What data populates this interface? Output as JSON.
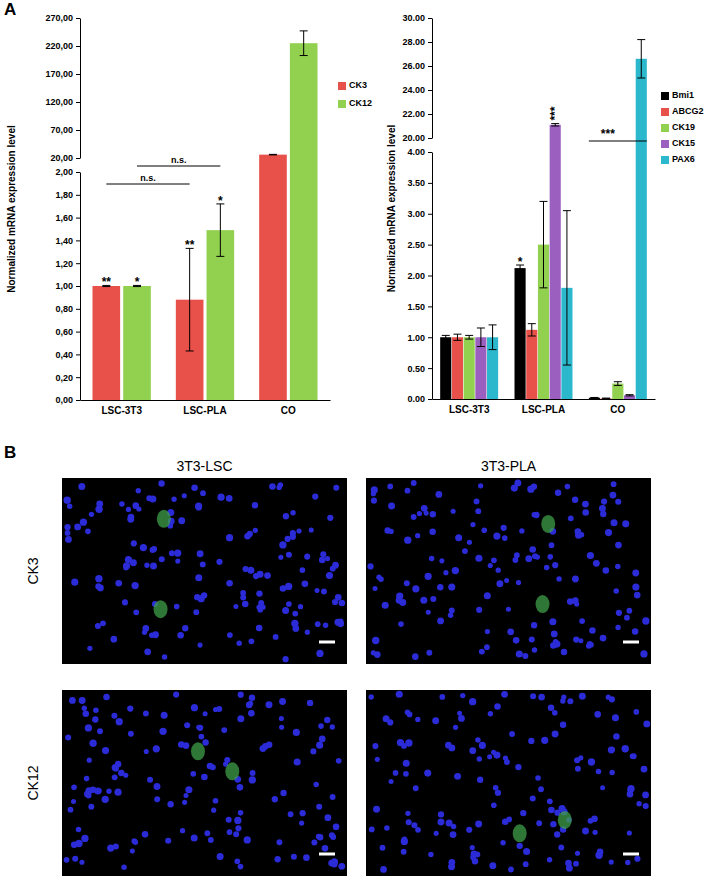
{
  "chart_data": [
    {
      "type": "bar",
      "y_label": "Normalized mRNA expression level",
      "categories": [
        "LSC-3T3",
        "LSC-PLA",
        "CO"
      ],
      "series": [
        {
          "name": "CK3",
          "color": "#e8504a",
          "values": [
            1.0,
            0.88,
            26
          ],
          "errors": [
            0.005,
            0.45,
            0.5
          ]
        },
        {
          "name": "CK12",
          "color": "#92d050",
          "values": [
            1.0,
            1.49,
            225
          ],
          "errors": [
            0.005,
            0.23,
            22
          ]
        }
      ],
      "ylim": [
        0,
        270
      ],
      "ybreak": [
        2,
        20
      ],
      "yticks": [
        {
          "value": 0,
          "label": "0,00"
        },
        {
          "value": 0.2,
          "label": "0,20"
        },
        {
          "value": 0.4,
          "label": "0,40"
        },
        {
          "value": 0.6,
          "label": "0,60"
        },
        {
          "value": 0.8,
          "label": "0,80"
        },
        {
          "value": 1,
          "label": "1,00"
        },
        {
          "value": 1.2,
          "label": "1,20"
        },
        {
          "value": 1.4,
          "label": "1,40"
        },
        {
          "value": 1.6,
          "label": "1,60"
        },
        {
          "value": 1.8,
          "label": "1,80"
        },
        {
          "value": 2,
          "label": "2,00"
        },
        {
          "value": 20,
          "label": "20,00"
        },
        {
          "value": 70,
          "label": "70,00"
        },
        {
          "value": 120,
          "label": "120,00"
        },
        {
          "value": 170,
          "label": "170,00"
        },
        {
          "value": 220,
          "label": "220,00"
        },
        {
          "value": 270,
          "label": "270,00"
        }
      ],
      "legend": "right",
      "annotations": [
        {
          "text": "**",
          "series": "CK3",
          "category": "LSC-3T3"
        },
        {
          "text": "*",
          "series": "CK12",
          "category": "LSC-3T3"
        },
        {
          "text": "**",
          "series": "CK3",
          "category": "LSC-PLA"
        },
        {
          "text": "*",
          "series": "CK12",
          "category": "LSC-PLA"
        },
        {
          "text": "n.s.",
          "series": "CK3",
          "from": "LSC-3T3",
          "to": "LSC-PLA"
        },
        {
          "text": "n.s.",
          "series": "CK12",
          "from": "LSC-3T3",
          "to": "LSC-PLA"
        }
      ]
    },
    {
      "type": "bar",
      "y_label": "Normalized mRNA expression level",
      "categories": [
        "LSC-3T3",
        "LSC-PLA",
        "CO"
      ],
      "series": [
        {
          "name": "Bmi1",
          "color": "#000000",
          "values": [
            1.0,
            2.12,
            0.02
          ],
          "errors": [
            0.03,
            0.05,
            0.005
          ]
        },
        {
          "name": "ABCG2",
          "color": "#e8504a",
          "values": [
            1.0,
            1.12,
            0.01
          ],
          "errors": [
            0.05,
            0.1,
            0.005
          ]
        },
        {
          "name": "CK19",
          "color": "#92d050",
          "values": [
            1.0,
            2.5,
            0.25
          ],
          "errors": [
            0.03,
            0.7,
            0.03
          ]
        },
        {
          "name": "CK15",
          "color": "#9b5fc0",
          "values": [
            1.0,
            21.1,
            0.06
          ],
          "errors": [
            0.15,
            0.1,
            0.01
          ]
        },
        {
          "name": "PAX6",
          "color": "#2cb8cc",
          "values": [
            1.0,
            1.8,
            26.6
          ],
          "errors": [
            0.2,
            1.25,
            1.6
          ]
        }
      ],
      "ylim": [
        0,
        30
      ],
      "ybreak": [
        4,
        20
      ],
      "yticks": [
        {
          "value": 0,
          "label": "0.00"
        },
        {
          "value": 0.5,
          "label": "0.50"
        },
        {
          "value": 1,
          "label": "1.00"
        },
        {
          "value": 1.5,
          "label": "1.50"
        },
        {
          "value": 2,
          "label": "2.00"
        },
        {
          "value": 2.5,
          "label": "2.50"
        },
        {
          "value": 3,
          "label": "3.00"
        },
        {
          "value": 3.5,
          "label": "3.50"
        },
        {
          "value": 4,
          "label": "4.00"
        },
        {
          "value": 20,
          "label": "20.00"
        },
        {
          "value": 22,
          "label": "22.00"
        },
        {
          "value": 24,
          "label": "24.00"
        },
        {
          "value": 26,
          "label": "26.00"
        },
        {
          "value": 28,
          "label": "28.00"
        },
        {
          "value": 30,
          "label": "30.00"
        }
      ],
      "legend": "right",
      "annotations": [
        {
          "text": "*",
          "series": "Bmi1",
          "category": "LSC-PLA"
        },
        {
          "text": "***",
          "series": "CK15",
          "category": "LSC-PLA"
        },
        {
          "text": "***",
          "from": "CO",
          "to": "CO"
        }
      ]
    }
  ],
  "figure": {
    "panel_labels": [
      "A",
      "B"
    ],
    "image_columns": [
      "3T3-LSC",
      "3T3-PLA"
    ],
    "image_rows": [
      "CK3",
      "CK12"
    ]
  }
}
